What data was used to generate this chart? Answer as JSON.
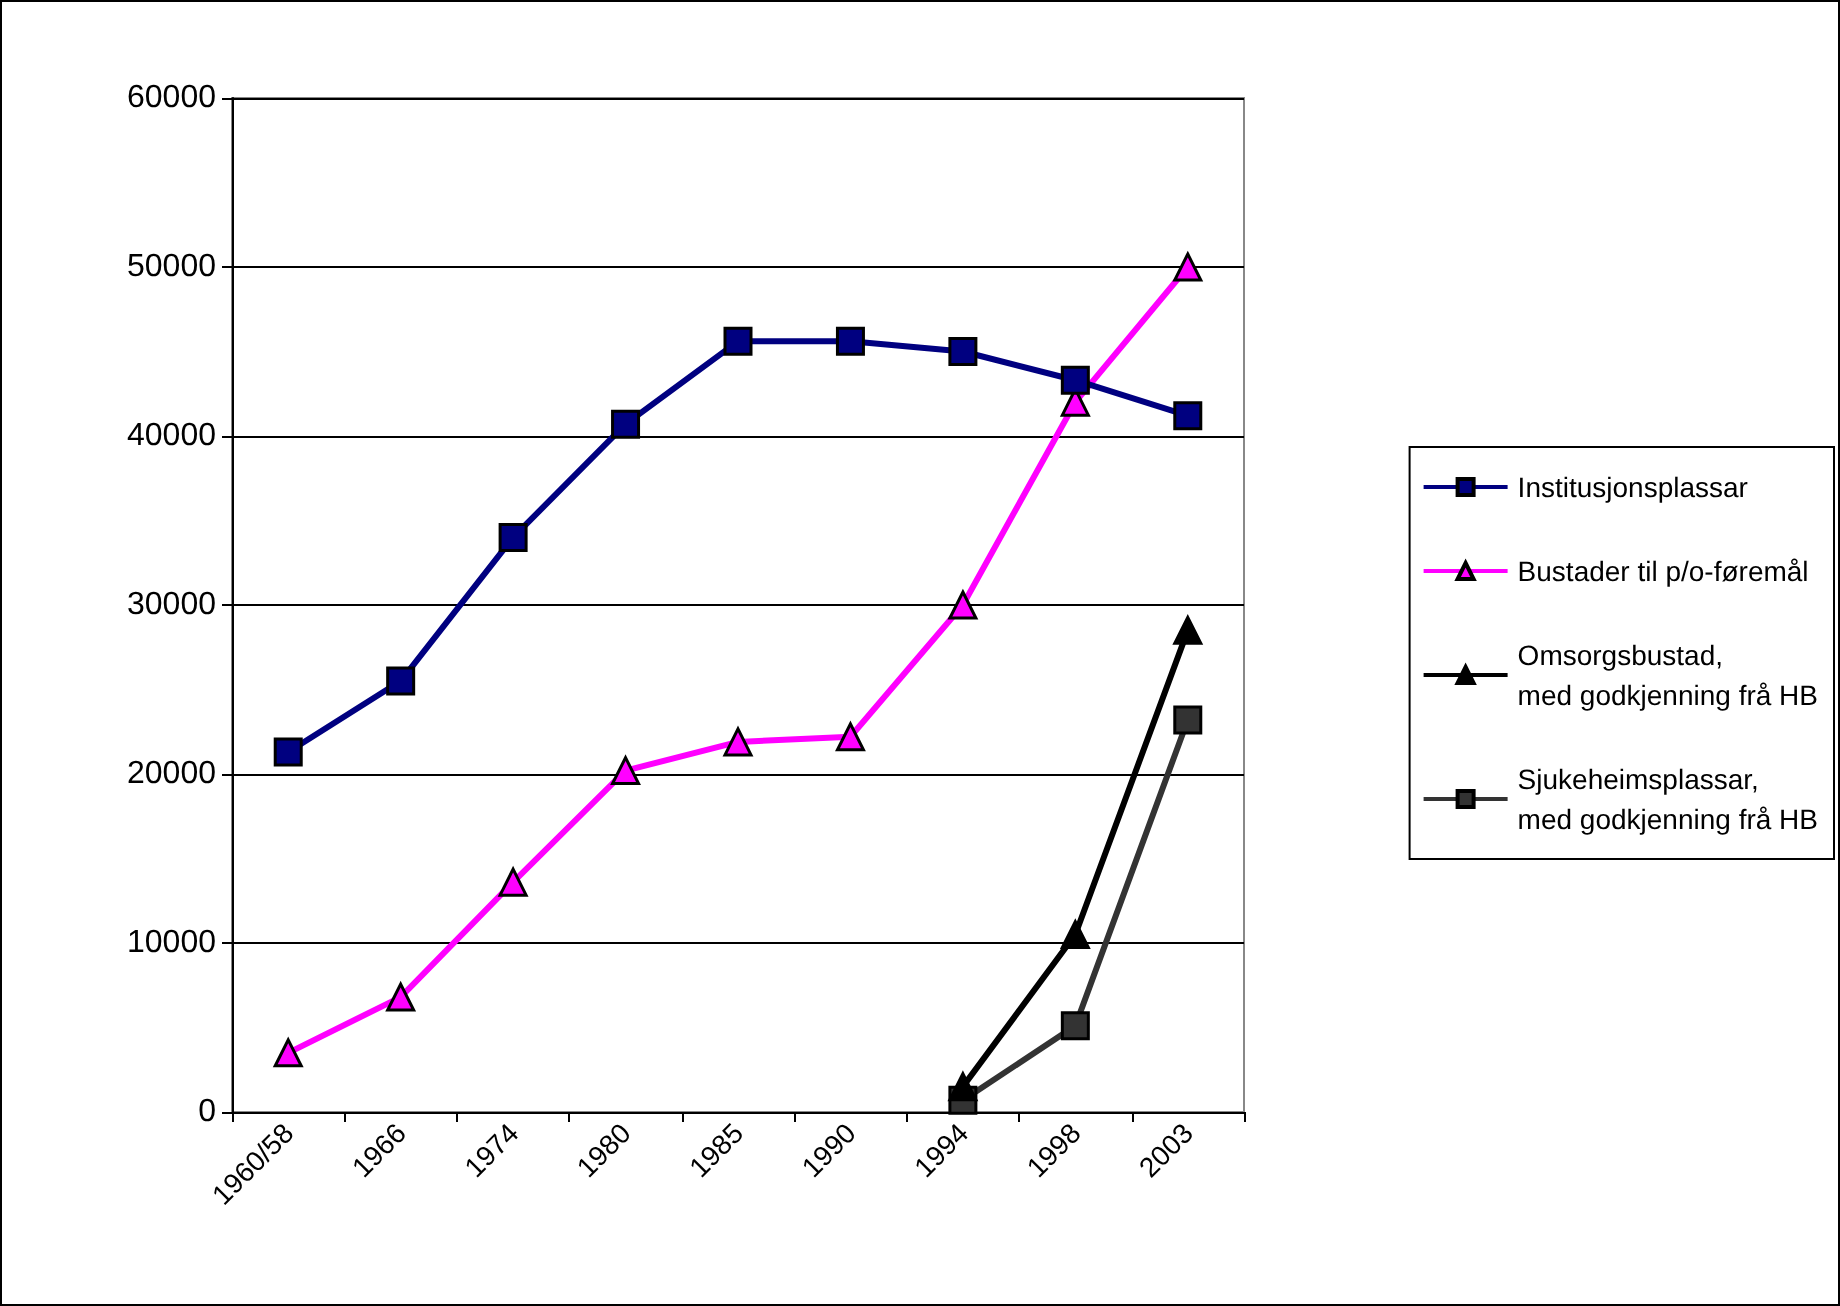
{
  "chart_data": {
    "type": "line",
    "categories": [
      "1960/58",
      "1966",
      "1974",
      "1980",
      "1985",
      "1990",
      "1994",
      "1998",
      "2003"
    ],
    "series": [
      {
        "name": "Institusjonsplassar",
        "color": "#000080",
        "marker": "square",
        "values": [
          21300,
          25500,
          34000,
          40700,
          45600,
          45600,
          45000,
          43300,
          41200
        ]
      },
      {
        "name": "Bustader til p/o-føremål",
        "color": "#ff00ff",
        "marker": "triangle",
        "values": [
          3500,
          6800,
          13600,
          20200,
          21900,
          22200,
          30000,
          42000,
          50000
        ]
      },
      {
        "name": "Omsorgsbustad, med godkjenning frå HB",
        "color": "#000000",
        "marker": "triangle",
        "values": [
          null,
          null,
          null,
          null,
          null,
          null,
          1500,
          10500,
          28500
        ]
      },
      {
        "name": "Sjukeheimsplassar, med godkjenning frå HB",
        "color": "#333333",
        "marker": "square",
        "values": [
          null,
          null,
          null,
          null,
          null,
          null,
          700,
          5100,
          23200
        ]
      }
    ],
    "ylim": [
      0,
      60000
    ],
    "yticks": [
      0,
      10000,
      20000,
      30000,
      40000,
      50000,
      60000
    ],
    "grid": "y",
    "legend": "right"
  }
}
